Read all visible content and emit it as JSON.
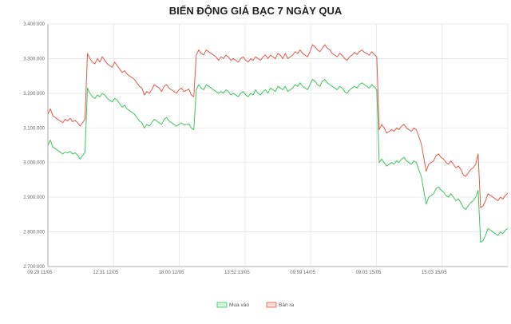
{
  "chart_data": {
    "type": "line",
    "title": "BIẾN ĐỘNG GIÁ BẠC 7 NGÀY QUA",
    "xlabel": "",
    "ylabel": "",
    "ylim": [
      2700000,
      3400000
    ],
    "y_ticks": [
      "3.400.000",
      "3.300.000",
      "3.200.000",
      "3.100.000",
      "3.000.000",
      "2.900.000",
      "2.800.000",
      "2.700.000"
    ],
    "y_tick_values": [
      3400000,
      3300000,
      3200000,
      3100000,
      3000000,
      2900000,
      2800000,
      2700000
    ],
    "x_ticks": [
      "09:29 11/05",
      "12:31 12/05",
      "18:00 12/05",
      "13:52 13/05",
      "09:59 14/05",
      "09:03 15/05",
      "15:03 15/05"
    ],
    "grid": true,
    "legend_position": "bottom",
    "colors": {
      "buy": "#3cc65a",
      "sell": "#e05a4a",
      "grid": "#e6e6e6",
      "axis": "#999999"
    },
    "series": [
      {
        "name": "Mua vào",
        "values": [
          3050000,
          3065000,
          3045000,
          3040000,
          3035000,
          3030000,
          3025000,
          3030000,
          3028000,
          3032000,
          3025000,
          3028000,
          3022000,
          3010000,
          3020000,
          3030000,
          3215000,
          3200000,
          3190000,
          3185000,
          3195000,
          3190000,
          3200000,
          3195000,
          3185000,
          3180000,
          3175000,
          3185000,
          3180000,
          3170000,
          3160000,
          3165000,
          3155000,
          3150000,
          3145000,
          3140000,
          3130000,
          3120000,
          3115000,
          3100000,
          3110000,
          3105000,
          3115000,
          3125000,
          3120000,
          3115000,
          3110000,
          3125000,
          3130000,
          3120000,
          3115000,
          3110000,
          3105000,
          3110000,
          3115000,
          3108000,
          3110000,
          3112000,
          3100000,
          3095000,
          3210000,
          3225000,
          3215000,
          3210000,
          3225000,
          3220000,
          3215000,
          3210000,
          3205000,
          3200000,
          3205000,
          3200000,
          3210000,
          3205000,
          3195000,
          3200000,
          3195000,
          3190000,
          3200000,
          3205000,
          3195000,
          3190000,
          3200000,
          3195000,
          3210000,
          3200000,
          3195000,
          3205000,
          3210000,
          3200000,
          3215000,
          3210000,
          3205000,
          3220000,
          3215000,
          3210000,
          3220000,
          3205000,
          3210000,
          3215000,
          3225000,
          3220000,
          3230000,
          3220000,
          3215000,
          3210000,
          3225000,
          3240000,
          3235000,
          3225000,
          3220000,
          3235000,
          3240000,
          3230000,
          3225000,
          3220000,
          3215000,
          3210000,
          3220000,
          3215000,
          3205000,
          3200000,
          3210000,
          3215000,
          3220000,
          3215000,
          3225000,
          3230000,
          3225000,
          3220000,
          3215000,
          3225000,
          3218000,
          3210000,
          3000000,
          3010000,
          3000000,
          2990000,
          2995000,
          3000000,
          2995000,
          3005000,
          3000000,
          3010000,
          3015000,
          3005000,
          3000000,
          2995000,
          3005000,
          3000000,
          2980000,
          2960000,
          2920000,
          2880000,
          2900000,
          2905000,
          2910000,
          2925000,
          2930000,
          2920000,
          2915000,
          2905000,
          2900000,
          2910000,
          2900000,
          2890000,
          2895000,
          2885000,
          2870000,
          2865000,
          2875000,
          2885000,
          2890000,
          2900000,
          2920000,
          2770000,
          2775000,
          2790000,
          2810000,
          2805000,
          2800000,
          2795000,
          2790000,
          2800000,
          2795000,
          2805000,
          2810000
        ]
      },
      {
        "name": "Bán ra",
        "values": [
          3140000,
          3155000,
          3135000,
          3130000,
          3125000,
          3120000,
          3115000,
          3125000,
          3120000,
          3128000,
          3118000,
          3122000,
          3115000,
          3105000,
          3115000,
          3125000,
          3315000,
          3300000,
          3290000,
          3285000,
          3300000,
          3290000,
          3305000,
          3295000,
          3285000,
          3280000,
          3275000,
          3290000,
          3280000,
          3270000,
          3260000,
          3265000,
          3255000,
          3250000,
          3245000,
          3240000,
          3230000,
          3220000,
          3215000,
          3195000,
          3205000,
          3200000,
          3210000,
          3225000,
          3220000,
          3215000,
          3205000,
          3220000,
          3225000,
          3215000,
          3210000,
          3205000,
          3200000,
          3210000,
          3215000,
          3205000,
          3208000,
          3212000,
          3195000,
          3190000,
          3310000,
          3325000,
          3315000,
          3310000,
          3325000,
          3320000,
          3315000,
          3310000,
          3305000,
          3295000,
          3305000,
          3300000,
          3310000,
          3305000,
          3295000,
          3300000,
          3295000,
          3290000,
          3300000,
          3305000,
          3295000,
          3290000,
          3300000,
          3295000,
          3305000,
          3300000,
          3295000,
          3305000,
          3310000,
          3300000,
          3310000,
          3305000,
          3300000,
          3315000,
          3310000,
          3300000,
          3315000,
          3300000,
          3305000,
          3310000,
          3320000,
          3315000,
          3325000,
          3315000,
          3310000,
          3305000,
          3320000,
          3340000,
          3335000,
          3325000,
          3320000,
          3330000,
          3340000,
          3330000,
          3325000,
          3315000,
          3310000,
          3305000,
          3315000,
          3310000,
          3300000,
          3295000,
          3305000,
          3310000,
          3318000,
          3312000,
          3320000,
          3325000,
          3318000,
          3315000,
          3310000,
          3320000,
          3312000,
          3305000,
          3095000,
          3110000,
          3100000,
          3085000,
          3090000,
          3095000,
          3090000,
          3100000,
          3095000,
          3105000,
          3110000,
          3100000,
          3095000,
          3090000,
          3100000,
          3095000,
          3075000,
          3055000,
          3015000,
          2975000,
          2995000,
          3000000,
          3005000,
          3020000,
          3025000,
          3015000,
          3010000,
          3000000,
          2995000,
          3005000,
          2995000,
          2985000,
          2990000,
          2980000,
          2965000,
          2960000,
          2970000,
          2980000,
          2985000,
          2995000,
          3025000,
          2870000,
          2875000,
          2890000,
          2910000,
          2905000,
          2900000,
          2895000,
          2890000,
          2900000,
          2895000,
          2905000,
          2912000
        ]
      }
    ]
  }
}
